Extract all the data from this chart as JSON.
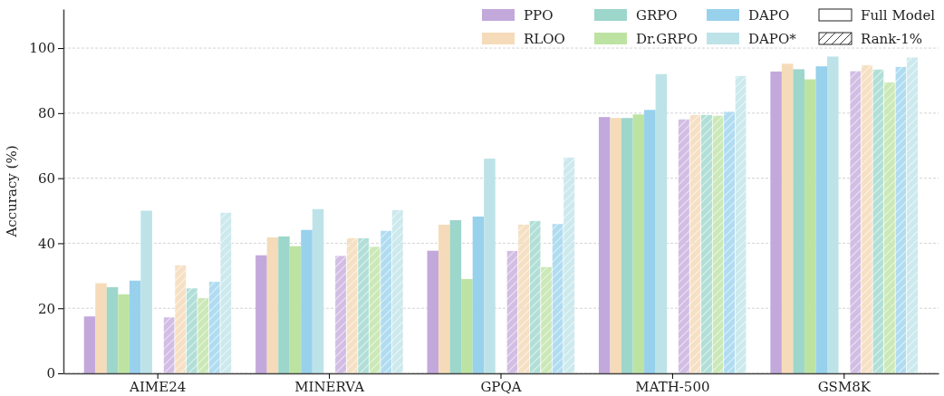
{
  "chart_data": {
    "type": "bar",
    "ylabel": "Accuracy (%)",
    "categories": [
      "AIME24",
      "MINERVA",
      "GPQA",
      "MATH-500",
      "GSM8K"
    ],
    "ylim": [
      0,
      112
    ],
    "yticks": [
      0,
      20,
      40,
      60,
      80,
      100
    ],
    "grid": "y",
    "legend": "top right",
    "annotations": [
      "Full Model",
      "Rank-1%"
    ],
    "series": [
      {
        "name": "PPO",
        "color": "#c3a8dc",
        "values": [
          17.5,
          36.3,
          37.7,
          78.8,
          92.8
        ]
      },
      {
        "name": "RLOO",
        "color": "#f5dbb9",
        "values": [
          27.7,
          41.8,
          45.7,
          78.5,
          95.2
        ]
      },
      {
        "name": "GRPO",
        "color": "#9dd6cb",
        "values": [
          26.5,
          42.1,
          47.1,
          78.5,
          93.5
        ]
      },
      {
        "name": "Dr.GRPO",
        "color": "#bde3a2",
        "values": [
          24.3,
          39.1,
          29.0,
          79.6,
          90.4
        ]
      },
      {
        "name": "DAPO",
        "color": "#98d1ec",
        "values": [
          28.5,
          44.1,
          48.2,
          81.0,
          94.4
        ]
      },
      {
        "name": "DAPO*",
        "color": "#bde3e8",
        "values": [
          50.0,
          50.5,
          66.0,
          92.0,
          97.4
        ]
      },
      {
        "color": "#d2bde4",
        "values": [
          17.3,
          36.2,
          37.7,
          78.2,
          93.0
        ]
      },
      {
        "color": "#f6e0c4",
        "values": [
          33.3,
          41.7,
          45.8,
          79.5,
          94.8
        ]
      },
      {
        "color": "#b1dfd7",
        "values": [
          26.2,
          41.6,
          46.9,
          79.5,
          93.5
        ]
      },
      {
        "color": "#cbe8b7",
        "values": [
          23.2,
          39.0,
          32.8,
          79.3,
          89.5
        ]
      },
      {
        "color": "#b0dcf1",
        "values": [
          28.2,
          43.9,
          46.0,
          80.5,
          94.3
        ]
      },
      {
        "color": "#cce9ed",
        "values": [
          49.5,
          50.3,
          66.4,
          91.5,
          97.2
        ]
      }
    ]
  }
}
